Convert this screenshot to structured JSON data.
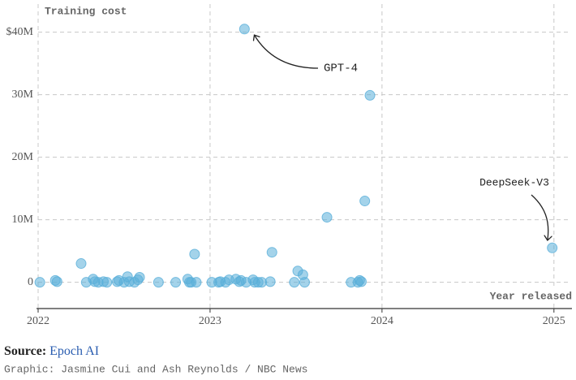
{
  "chart_data": {
    "type": "scatter",
    "y_label": "Training cost",
    "x_label": "Year released",
    "x": [
      2022.01,
      2022.1,
      2022.11,
      2022.25,
      2022.28,
      2022.32,
      2022.33,
      2022.35,
      2022.38,
      2022.4,
      2022.46,
      2022.47,
      2022.5,
      2022.52,
      2022.53,
      2022.56,
      2022.58,
      2022.59,
      2022.7,
      2022.8,
      2022.87,
      2022.88,
      2022.89,
      2022.91,
      2022.92,
      2023.01,
      2023.05,
      2023.06,
      2023.09,
      2023.11,
      2023.15,
      2023.17,
      2023.18,
      2023.2,
      2023.21,
      2023.25,
      2023.26,
      2023.28,
      2023.3,
      2023.35,
      2023.36,
      2023.49,
      2023.51,
      2023.54,
      2023.55,
      2023.68,
      2023.82,
      2023.86,
      2023.87,
      2023.88,
      2023.9,
      2023.93,
      2024.99
    ],
    "values": [
      0,
      300000,
      100000,
      3000000,
      0,
      500000,
      100000,
      0,
      100000,
      0,
      100000,
      300000,
      0,
      900000,
      100000,
      0,
      400000,
      800000,
      0,
      0,
      500000,
      0,
      0,
      4500000,
      0,
      0,
      0,
      100000,
      0,
      400000,
      500000,
      100000,
      300000,
      40500000,
      0,
      400000,
      0,
      0,
      0,
      100000,
      4800000,
      0,
      1800000,
      1200000,
      0,
      10400000,
      0,
      0,
      300000,
      100000,
      13000000,
      29900000,
      5500000
    ],
    "color": "#5aafd9",
    "xlim": [
      2022,
      2025.1
    ],
    "xticks": [
      2022,
      2023,
      2024,
      2025
    ],
    "ylim": [
      -4200000,
      44500000
    ],
    "yticks": [
      0,
      {
        "value": 10000000,
        "label": "10M"
      },
      {
        "value": 20000000,
        "label": "20M"
      },
      {
        "value": 30000000,
        "label": "30M"
      },
      {
        "value": 40000000,
        "label": "$40M"
      }
    ],
    "grid": true,
    "annotations": [
      {
        "text": "GPT-4"
      },
      {
        "text": "DeepSeek-V3"
      }
    ]
  },
  "footer": {
    "source_label": "Source:",
    "source": "Epoch AI",
    "credit": "Graphic: Jasmine Cui and Ash Reynolds / NBC News"
  }
}
